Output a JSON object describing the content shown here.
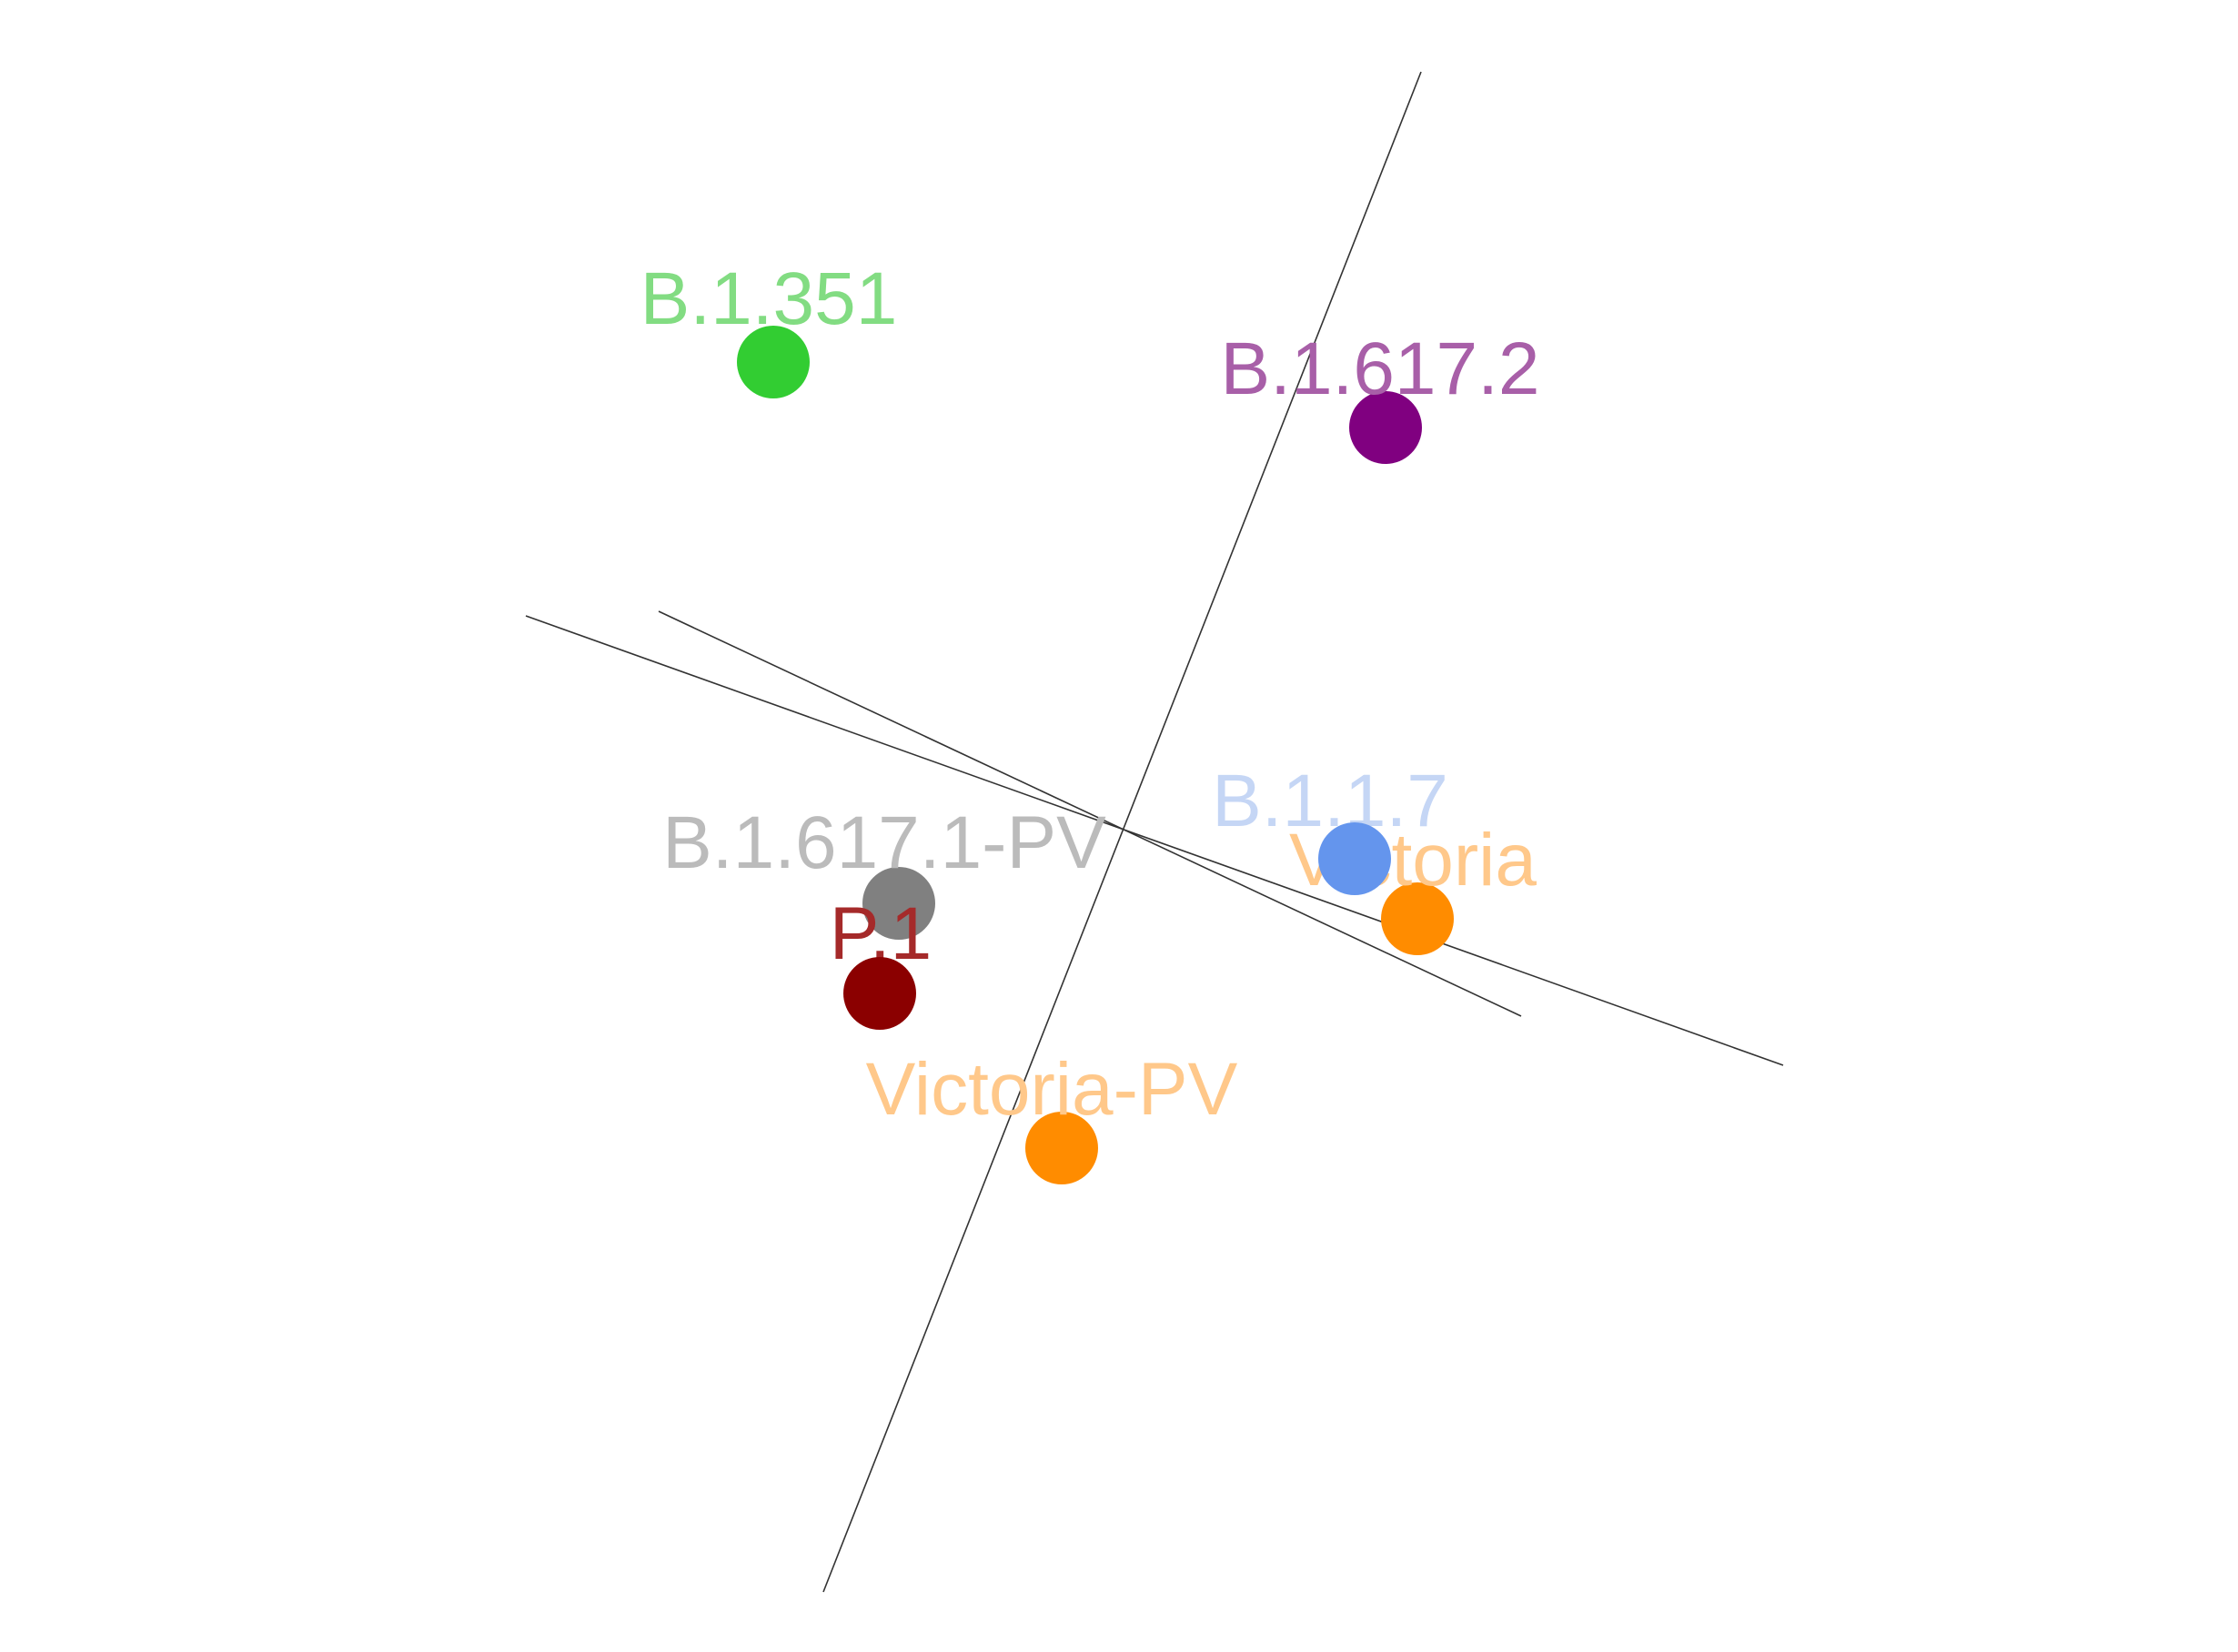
{
  "points": [
    {
      "id": "b1351",
      "label": "B.1.351",
      "color": "#32CD32",
      "label_color": "#82DC82"
    },
    {
      "id": "b16172",
      "label": "B.1.617.2",
      "color": "#800080",
      "label_color": "#A85FA8"
    },
    {
      "id": "b117",
      "label": "B.1.1.7",
      "color": "#6495ED",
      "label_color": "#C5D6F5"
    },
    {
      "id": "victoria",
      "label": "Victoria",
      "color": "#FF8C00",
      "label_color": "#FFC88A"
    },
    {
      "id": "b16171pv",
      "label": "B.1.617.1-PV",
      "color": "#808080",
      "label_color": "#BBBBBB"
    },
    {
      "id": "p1",
      "label": "P.1",
      "color": "#8B0000",
      "label_color": "#A52A2A"
    },
    {
      "id": "victoriapv",
      "label": "Victoria-PV",
      "color": "#FF8C00",
      "label_color": "#FFC88A"
    }
  ],
  "axes_color": "#333333"
}
